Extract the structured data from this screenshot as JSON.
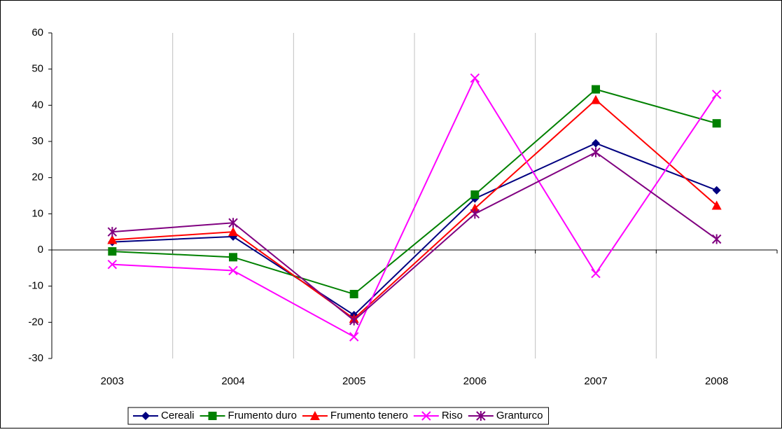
{
  "chart_data": {
    "type": "line",
    "categories": [
      "2003",
      "2004",
      "2005",
      "2006",
      "2007",
      "2008"
    ],
    "series": [
      {
        "name": "Cereali",
        "color": "#000080",
        "marker": "diamond",
        "values": [
          2.2,
          3.7,
          -18,
          14.2,
          29.5,
          16.5
        ]
      },
      {
        "name": "Frumento duro",
        "color": "#008000",
        "marker": "square",
        "values": [
          -0.4,
          -2,
          -12.2,
          15.3,
          44.4,
          35
        ]
      },
      {
        "name": "Frumento tenero",
        "color": "#ff0000",
        "marker": "triangle",
        "values": [
          2.8,
          5,
          -19,
          11.5,
          41.5,
          12.3
        ]
      },
      {
        "name": "Riso",
        "color": "#ff00ff",
        "marker": "x",
        "values": [
          -4,
          -5.7,
          -24,
          47.5,
          -6.5,
          43
        ]
      },
      {
        "name": "Granturco",
        "color": "#800080",
        "marker": "star",
        "values": [
          5,
          7.5,
          -19.5,
          10,
          27,
          3
        ]
      }
    ],
    "ylim": [
      -30,
      60
    ],
    "yticks": [
      -30,
      -20,
      -10,
      0,
      10,
      20,
      30,
      40,
      50,
      60
    ],
    "grid": "vertical",
    "legend": "bottom"
  }
}
